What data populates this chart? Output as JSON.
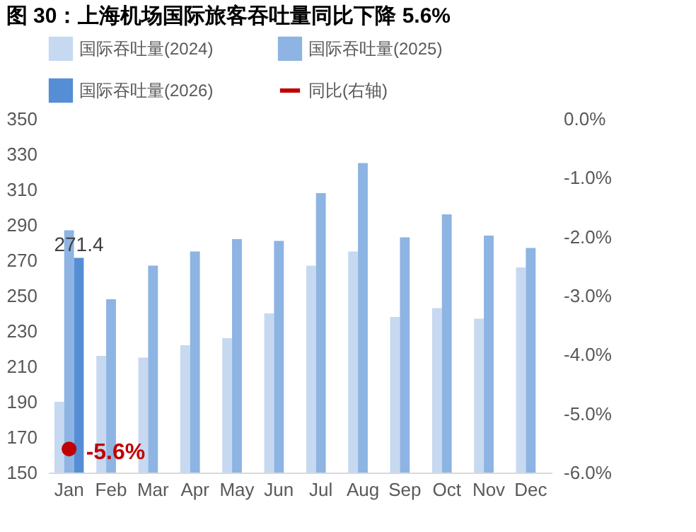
{
  "chart_data": {
    "type": "bar",
    "title": "图 30：上海机场国际旅客吞吐量同比下降 5.6%",
    "categories": [
      "Jan",
      "Feb",
      "Mar",
      "Apr",
      "May",
      "Jun",
      "Jul",
      "Aug",
      "Sep",
      "Oct",
      "Nov",
      "Dec"
    ],
    "series": [
      {
        "name": "国际吞吐量(2024)",
        "color": "#c6d9f0",
        "values": [
          190,
          216,
          215,
          222,
          226,
          240,
          267,
          275,
          238,
          243,
          237,
          266
        ]
      },
      {
        "name": "国际吞吐量(2025)",
        "color": "#8db4e2",
        "values": [
          287,
          248,
          267,
          275,
          282,
          281,
          308,
          325,
          283,
          296,
          284,
          277
        ]
      },
      {
        "name": "国际吞吐量(2026)",
        "color": "#558ed5",
        "values": [
          271.4,
          null,
          null,
          null,
          null,
          null,
          null,
          null,
          null,
          null,
          null,
          null
        ],
        "value_labels": [
          "271.4",
          null,
          null,
          null,
          null,
          null,
          null,
          null,
          null,
          null,
          null,
          null
        ]
      },
      {
        "name": "同比(右轴)",
        "type": "line",
        "axis": "y2",
        "color": "#c00000",
        "values": [
          -5.6,
          null,
          null,
          null,
          null,
          null,
          null,
          null,
          null,
          null,
          null,
          null
        ],
        "value_labels": [
          "-5.6%",
          null,
          null,
          null,
          null,
          null,
          null,
          null,
          null,
          null,
          null,
          null
        ]
      }
    ],
    "ylim": [
      150,
      350
    ],
    "yticks": [
      150,
      170,
      190,
      210,
      230,
      250,
      270,
      290,
      310,
      330,
      350
    ],
    "y2lim": [
      -6,
      0
    ],
    "y2ticks": [
      {
        "value": -6,
        "label": "-6.0%"
      },
      {
        "value": -5,
        "label": "-5.0%"
      },
      {
        "value": -4,
        "label": "-4.0%"
      },
      {
        "value": -3,
        "label": "-3.0%"
      },
      {
        "value": -2,
        "label": "-2.0%"
      },
      {
        "value": -1,
        "label": "-1.0%"
      },
      {
        "value": 0,
        "label": "0.0%"
      }
    ],
    "legend": "top",
    "marker": "circle",
    "grid": false
  }
}
